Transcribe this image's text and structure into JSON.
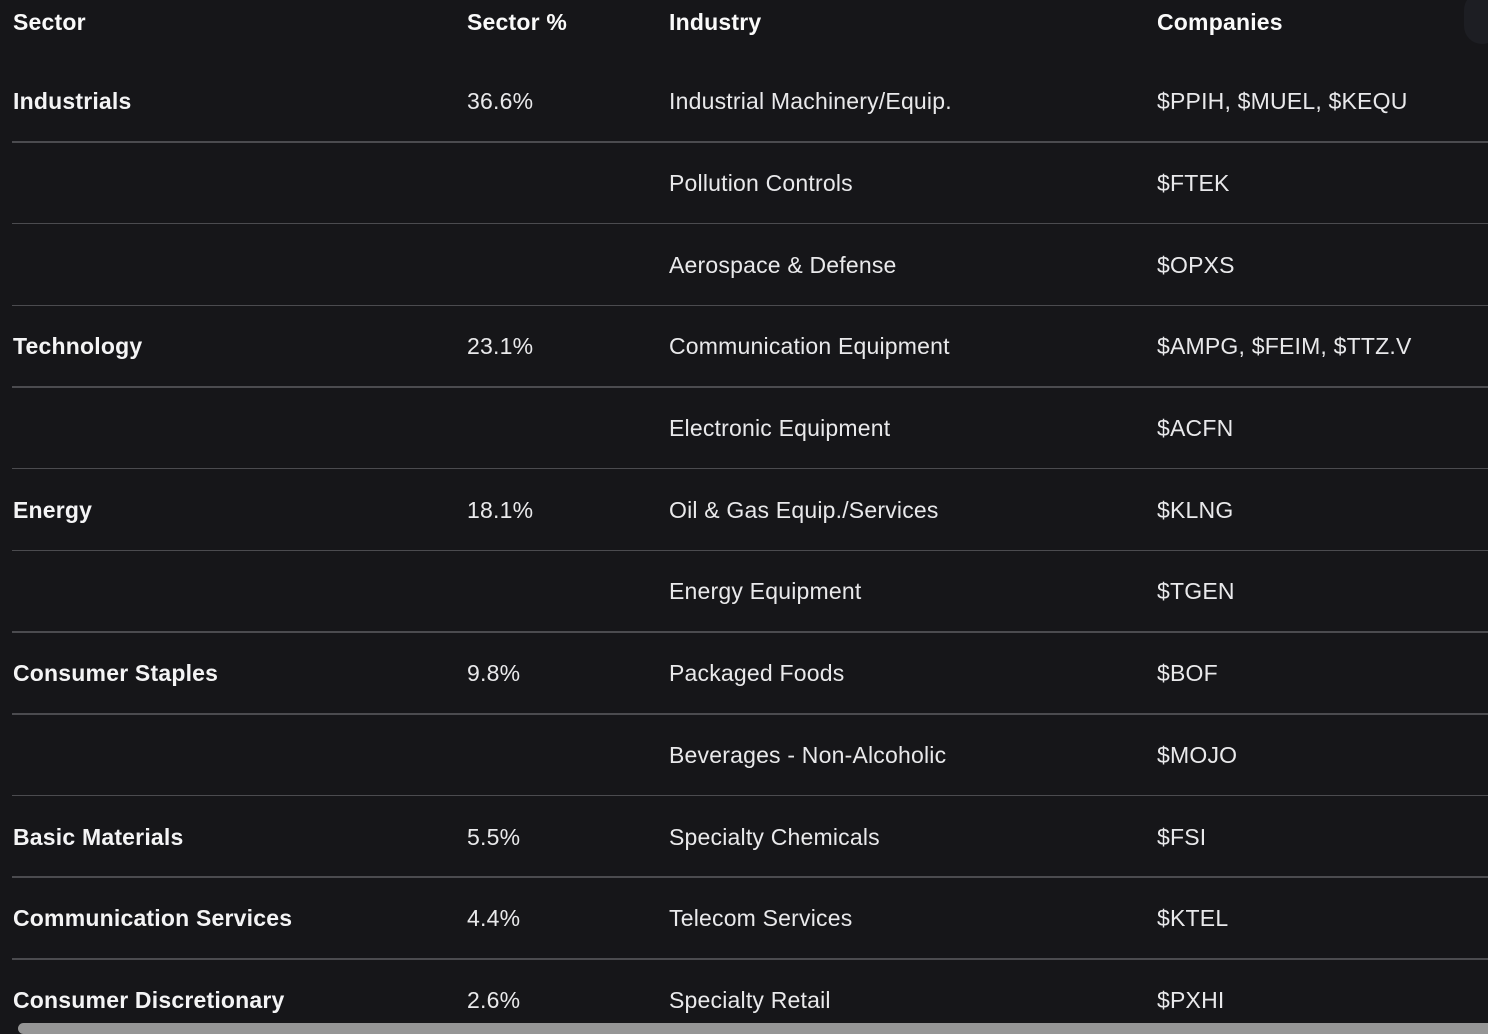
{
  "table": {
    "columns": {
      "sector": "Sector",
      "sector_pct": "Sector %",
      "industry": "Industry",
      "companies": "Companies"
    },
    "rows": [
      {
        "sector": "Industrials",
        "sector_pct": "36.6%",
        "industry": "Industrial Machinery/Equip.",
        "companies": "$PPIH, $MUEL, $KEQU"
      },
      {
        "sector": "",
        "sector_pct": "",
        "industry": "Pollution Controls",
        "companies": "$FTEK"
      },
      {
        "sector": "",
        "sector_pct": "",
        "industry": "Aerospace & Defense",
        "companies": "$OPXS"
      },
      {
        "sector": "Technology",
        "sector_pct": "23.1%",
        "industry": "Communication Equipment",
        "companies": "$AMPG, $FEIM, $TTZ.V"
      },
      {
        "sector": "",
        "sector_pct": "",
        "industry": "Electronic Equipment",
        "companies": "$ACFN"
      },
      {
        "sector": "Energy",
        "sector_pct": "18.1%",
        "industry": "Oil & Gas Equip./Services",
        "companies": "$KLNG"
      },
      {
        "sector": "",
        "sector_pct": "",
        "industry": "Energy Equipment",
        "companies": "$TGEN"
      },
      {
        "sector": "Consumer Staples",
        "sector_pct": "9.8%",
        "industry": "Packaged Foods",
        "companies": "$BOF"
      },
      {
        "sector": "",
        "sector_pct": "",
        "industry": "Beverages - Non-Alcoholic",
        "companies": "$MOJO"
      },
      {
        "sector": "Basic Materials",
        "sector_pct": "5.5%",
        "industry": "Specialty Chemicals",
        "companies": "$FSI"
      },
      {
        "sector": "Communication Services",
        "sector_pct": "4.4%",
        "industry": "Telecom Services",
        "companies": "$KTEL"
      },
      {
        "sector": "Consumer Discretionary",
        "sector_pct": "2.6%",
        "industry": "Specialty Retail",
        "companies": "$PXHI"
      }
    ]
  },
  "colors": {
    "background": "#161619",
    "divider": "#4b4b4f",
    "header_text": "#fafafa",
    "body_text": "#e9e9eb",
    "scrollbar_thumb_horizontal": "#969696",
    "scrollbar_thumb_vertical": "#1d1e23"
  }
}
